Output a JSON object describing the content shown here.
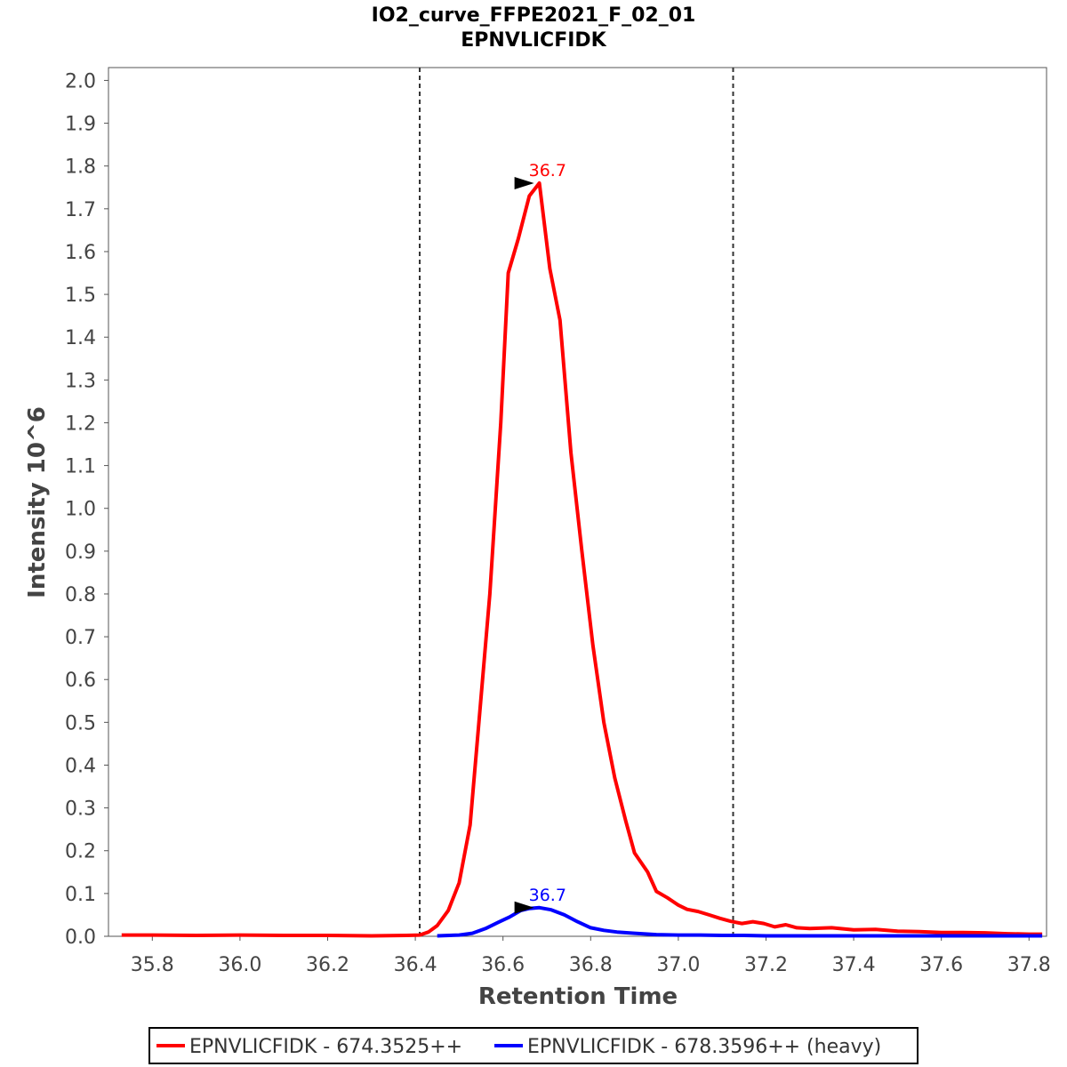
{
  "chart_data": {
    "type": "line",
    "title": "IO2_curve_FFPE2021_F_02_01",
    "subtitle": "EPNVLICFIDK",
    "xlabel": "Retention Time",
    "ylabel": "Intensity 10^6",
    "xlim": [
      35.7,
      37.84
    ],
    "ylim": [
      0.0,
      2.03
    ],
    "x_ticks": [
      "35.8",
      "36.0",
      "36.2",
      "36.4",
      "36.6",
      "36.8",
      "37.0",
      "37.2",
      "37.4",
      "37.6",
      "37.8"
    ],
    "y_ticks": [
      "0.0",
      "0.1",
      "0.2",
      "0.3",
      "0.4",
      "0.5",
      "0.6",
      "0.7",
      "0.8",
      "0.9",
      "1.0",
      "1.1",
      "1.2",
      "1.3",
      "1.4",
      "1.5",
      "1.6",
      "1.7",
      "1.8",
      "1.9",
      "2.0"
    ],
    "integration_boundaries": [
      36.41,
      37.125
    ],
    "legend_position": "bottom",
    "grid": false,
    "series": [
      {
        "name": "EPNVLICFIDK - 674.3525++",
        "color": "#ff0000",
        "peak": {
          "x": 36.683,
          "y": 1.76,
          "label": "36.7"
        },
        "points": [
          [
            35.73,
            0.003
          ],
          [
            35.8,
            0.003
          ],
          [
            35.9,
            0.002
          ],
          [
            36.0,
            0.003
          ],
          [
            36.1,
            0.002
          ],
          [
            36.2,
            0.002
          ],
          [
            36.3,
            0.001
          ],
          [
            36.38,
            0.002
          ],
          [
            36.41,
            0.003
          ],
          [
            36.43,
            0.01
          ],
          [
            36.45,
            0.025
          ],
          [
            36.475,
            0.06
          ],
          [
            36.5,
            0.125
          ],
          [
            36.525,
            0.26
          ],
          [
            36.545,
            0.5
          ],
          [
            36.57,
            0.8
          ],
          [
            36.595,
            1.2
          ],
          [
            36.612,
            1.55
          ],
          [
            36.635,
            1.63
          ],
          [
            36.66,
            1.73
          ],
          [
            36.683,
            1.76
          ],
          [
            36.707,
            1.56
          ],
          [
            36.73,
            1.44
          ],
          [
            36.755,
            1.13
          ],
          [
            36.78,
            0.9
          ],
          [
            36.805,
            0.68
          ],
          [
            36.83,
            0.5
          ],
          [
            36.855,
            0.37
          ],
          [
            36.88,
            0.27
          ],
          [
            36.9,
            0.195
          ],
          [
            36.93,
            0.15
          ],
          [
            36.95,
            0.105
          ],
          [
            36.975,
            0.09
          ],
          [
            37.0,
            0.073
          ],
          [
            37.02,
            0.063
          ],
          [
            37.045,
            0.058
          ],
          [
            37.07,
            0.05
          ],
          [
            37.095,
            0.042
          ],
          [
            37.12,
            0.035
          ],
          [
            37.145,
            0.03
          ],
          [
            37.17,
            0.034
          ],
          [
            37.195,
            0.03
          ],
          [
            37.22,
            0.022
          ],
          [
            37.245,
            0.027
          ],
          [
            37.27,
            0.02
          ],
          [
            37.3,
            0.018
          ],
          [
            37.35,
            0.02
          ],
          [
            37.4,
            0.015
          ],
          [
            37.45,
            0.016
          ],
          [
            37.5,
            0.012
          ],
          [
            37.55,
            0.011
          ],
          [
            37.6,
            0.009
          ],
          [
            37.65,
            0.009
          ],
          [
            37.7,
            0.008
          ],
          [
            37.75,
            0.006
          ],
          [
            37.8,
            0.005
          ],
          [
            37.83,
            0.005
          ]
        ]
      },
      {
        "name": "EPNVLICFIDK - 678.3596++ (heavy)",
        "color": "#0000ff",
        "peak": {
          "x": 36.683,
          "y": 0.067,
          "label": "36.7"
        },
        "points": [
          [
            36.45,
            0.001
          ],
          [
            36.5,
            0.003
          ],
          [
            36.53,
            0.007
          ],
          [
            36.56,
            0.018
          ],
          [
            36.59,
            0.033
          ],
          [
            36.615,
            0.045
          ],
          [
            36.64,
            0.06
          ],
          [
            36.66,
            0.065
          ],
          [
            36.683,
            0.067
          ],
          [
            36.71,
            0.062
          ],
          [
            36.74,
            0.05
          ],
          [
            36.77,
            0.034
          ],
          [
            36.8,
            0.02
          ],
          [
            36.83,
            0.014
          ],
          [
            36.86,
            0.01
          ],
          [
            36.9,
            0.007
          ],
          [
            36.95,
            0.004
          ],
          [
            37.0,
            0.003
          ],
          [
            37.05,
            0.003
          ],
          [
            37.1,
            0.002
          ],
          [
            37.15,
            0.002
          ],
          [
            37.2,
            0.001
          ],
          [
            37.3,
            0.001
          ],
          [
            37.4,
            0.001
          ],
          [
            37.5,
            0.001
          ],
          [
            37.6,
            0.001
          ],
          [
            37.7,
            0.001
          ],
          [
            37.83,
            0.001
          ]
        ]
      }
    ]
  }
}
